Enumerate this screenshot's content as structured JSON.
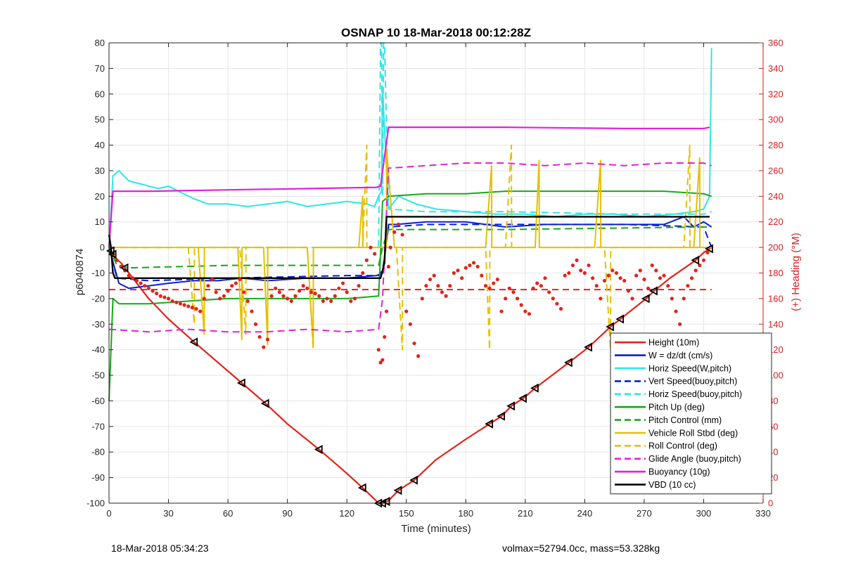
{
  "colors": {
    "height": "#e2231a",
    "w": "#0a1fd6",
    "horiz": "#2ee6e6",
    "pitch": "#18a818",
    "roll": "#e6c000",
    "glide": "#e020e0",
    "buoy": "#e020e0",
    "vbd": "#000000",
    "heading": "#e2231a",
    "grid": "#e6e6e6",
    "axis_left": "#262626",
    "axis_right": "#d21e1e"
  },
  "footer": {
    "left": "18-Mar-2018 05:34:23",
    "right": "volmax=52794.0cc, mass=53.328kg"
  },
  "chart_data": {
    "type": "line",
    "title": "OSNAP 10 18-Mar-2018 00:12:28Z",
    "xlabel": "Time (minutes)",
    "ylabel": "p6040874",
    "y2label": "(+) Heading (°M)",
    "xlim": [
      0,
      330
    ],
    "ylim": [
      -100,
      80
    ],
    "y2lim": [
      0,
      360
    ],
    "xticks": [
      0,
      30,
      60,
      90,
      120,
      150,
      180,
      210,
      240,
      270,
      300,
      330
    ],
    "yticks": [
      -100,
      -90,
      -80,
      -70,
      -60,
      -50,
      -40,
      -30,
      -20,
      -10,
      0,
      10,
      20,
      30,
      40,
      50,
      60,
      70,
      80
    ],
    "y2ticks": [
      0,
      20,
      40,
      60,
      80,
      100,
      120,
      140,
      160,
      180,
      200,
      220,
      240,
      260,
      280,
      300,
      320,
      340,
      360
    ],
    "grid": true,
    "legend_position": "bottom-right",
    "legend": [
      {
        "label": "Height (10m)",
        "color": "height",
        "dash": false
      },
      {
        "label": "W = dz/dt (cm/s)",
        "color": "w",
        "dash": false
      },
      {
        "label": "Horiz Speed(W,pitch)",
        "color": "horiz",
        "dash": false
      },
      {
        "label": "Vert Speed(buoy,pitch)",
        "color": "w",
        "dash": true
      },
      {
        "label": "Horiz Speed(buoy,pitch)",
        "color": "horiz",
        "dash": true
      },
      {
        "label": "Pitch Up (deg)",
        "color": "pitch",
        "dash": false
      },
      {
        "label": "Pitch Control (mm)",
        "color": "pitch",
        "dash": true
      },
      {
        "label": "Vehicle Roll Stbd (deg)",
        "color": "roll",
        "dash": false
      },
      {
        "label": "Roll Control (deg)",
        "color": "roll",
        "dash": true
      },
      {
        "label": "Glide Angle (buoy,pitch)",
        "color": "glide",
        "dash": true
      },
      {
        "label": "Buoyancy (10g)",
        "color": "buoy",
        "dash": false
      },
      {
        "label": "VBD (10 cc)",
        "color": "vbd",
        "dash": false
      }
    ],
    "series": [
      {
        "name": "Height (10m)",
        "color": "height",
        "dash": false,
        "width": 2.2,
        "x": [
          0,
          3,
          6,
          10,
          20,
          30,
          43,
          55,
          67,
          79,
          90,
          106,
          118,
          128,
          132,
          136,
          138,
          141,
          146,
          150,
          154,
          165,
          180,
          192,
          198,
          203,
          209,
          215,
          232,
          242,
          253,
          258,
          271,
          275,
          283,
          296,
          300,
          304
        ],
        "y": [
          0,
          -4,
          -6,
          -10,
          -20,
          -28,
          -37,
          -45,
          -53,
          -61,
          -69,
          -79,
          -87,
          -94,
          -97,
          -100,
          -100,
          -99,
          -95,
          -93,
          -91,
          -83,
          -75,
          -69,
          -66,
          -62,
          -59,
          -55,
          -45,
          -39,
          -31,
          -28,
          -20,
          -17,
          -12,
          -5,
          -2,
          0
        ]
      },
      {
        "name": "W = dz/dt (cm/s)",
        "color": "w",
        "dash": false,
        "width": 2,
        "x": [
          0,
          5,
          10,
          20,
          30,
          43,
          55,
          67,
          80,
          100,
          120,
          135,
          138,
          141,
          145,
          160,
          180,
          200,
          220,
          240,
          260,
          280,
          290,
          295,
          300,
          304
        ],
        "y": [
          0,
          -14,
          -16,
          -15,
          -14,
          -13,
          -13,
          -12,
          -13,
          -12,
          -12,
          -11,
          -10,
          9,
          9,
          10,
          10,
          8,
          9,
          9,
          9,
          9,
          12,
          8,
          10,
          8
        ]
      },
      {
        "name": "Horiz Speed(W,pitch)",
        "color": "horiz",
        "dash": false,
        "width": 2,
        "x": [
          0,
          2,
          5,
          10,
          15,
          20,
          25,
          30,
          35,
          43,
          50,
          60,
          70,
          80,
          90,
          100,
          110,
          120,
          130,
          134,
          136,
          137.5,
          138,
          141,
          146,
          155,
          165,
          180,
          195,
          210,
          225,
          240,
          255,
          270,
          285,
          295,
          300,
          303,
          304
        ],
        "y": [
          0,
          28,
          30,
          26,
          25,
          24,
          23,
          24,
          22,
          19,
          17,
          17,
          16,
          17,
          18,
          16,
          17,
          18,
          17,
          16,
          20,
          22,
          62,
          15,
          20,
          17,
          15,
          14,
          13,
          13,
          12,
          13,
          13,
          12,
          13,
          14,
          15,
          20,
          78
        ]
      },
      {
        "name": "Vert Speed(buoy,pitch)",
        "color": "w",
        "dash": true,
        "width": 2,
        "x": [
          0,
          4,
          20,
          60,
          120,
          136,
          138,
          141,
          160,
          200,
          260,
          300,
          304
        ],
        "y": [
          0,
          -12,
          -13,
          -12,
          -11,
          -11,
          -9,
          8,
          9,
          9,
          9,
          8,
          0
        ]
      },
      {
        "name": "Horiz Speed(buoy,pitch)",
        "color": "horiz",
        "dash": true,
        "width": 2,
        "x": [
          0,
          30,
          60,
          90,
          120,
          136,
          137,
          137.5,
          138,
          138.5,
          139,
          141,
          160,
          200,
          260,
          300,
          304
        ],
        "y": [
          0,
          0,
          0,
          0,
          0,
          0,
          80,
          80,
          20,
          80,
          80,
          15,
          14,
          14,
          13,
          13,
          14
        ]
      },
      {
        "name": "Pitch Up (deg)",
        "color": "pitch",
        "dash": false,
        "width": 2,
        "x": [
          0,
          2,
          5,
          20,
          40,
          60,
          80,
          100,
          120,
          136,
          137,
          138,
          141,
          160,
          180,
          200,
          220,
          240,
          260,
          280,
          300,
          304
        ],
        "y": [
          -60,
          -20,
          -22,
          -22,
          -21,
          -20,
          -20,
          -20,
          -20,
          -19,
          -2,
          18,
          20,
          21,
          21,
          22,
          22,
          22,
          22,
          22,
          21,
          20
        ]
      },
      {
        "name": "Pitch Control (mm)",
        "color": "pitch",
        "dash": true,
        "width": 2,
        "x": [
          0,
          4,
          10,
          60,
          120,
          136,
          138,
          141,
          200,
          300,
          304
        ],
        "y": [
          0,
          -7,
          -8,
          -7,
          -7,
          -7,
          0,
          7,
          7,
          8,
          8
        ]
      },
      {
        "name": "Vehicle Roll Stbd (deg)",
        "color": "roll",
        "dash": false,
        "width": 2,
        "x": [
          0,
          20,
          40,
          45,
          48,
          48.1,
          50,
          65,
          67,
          67.1,
          70,
          78,
          80,
          80.1,
          83,
          100,
          103,
          103.1,
          106,
          126,
          128,
          128.1,
          131,
          136,
          138,
          140,
          140.1,
          144,
          160,
          190,
          193,
          193.1,
          196,
          215,
          217,
          217.1,
          220,
          245,
          248,
          248.1,
          251,
          295,
          298,
          298.1,
          301,
          304
        ],
        "y": [
          0,
          0,
          0,
          0,
          -34,
          0,
          0,
          0,
          -36,
          0,
          0,
          0,
          -38,
          0,
          0,
          0,
          -38,
          0,
          0,
          0,
          20,
          0,
          0,
          0,
          0,
          0,
          38,
          0,
          0,
          0,
          32,
          0,
          0,
          0,
          34,
          0,
          0,
          0,
          34,
          0,
          0,
          0,
          35,
          0,
          0,
          0
        ]
      },
      {
        "name": "Roll Control (deg)",
        "color": "roll",
        "dash": true,
        "width": 2,
        "x": [
          0,
          40,
          43,
          43.1,
          46,
          66,
          69,
          69.1,
          72,
          100,
          103,
          103.1,
          106,
          128,
          130,
          130.1,
          133,
          145,
          148,
          148.1,
          151,
          190,
          192,
          192.1,
          195,
          200,
          203,
          203.1,
          206,
          250,
          253,
          253.1,
          256,
          290,
          293,
          293.1,
          296,
          304
        ],
        "y": [
          0,
          0,
          -30,
          0,
          0,
          0,
          -34,
          0,
          0,
          0,
          -40,
          0,
          0,
          0,
          40,
          0,
          0,
          0,
          -40,
          0,
          0,
          0,
          -40,
          0,
          0,
          0,
          40,
          0,
          0,
          0,
          -40,
          0,
          0,
          0,
          40,
          0,
          0,
          0
        ]
      },
      {
        "name": "Glide Angle (buoy,pitch)",
        "color": "glide",
        "dash": true,
        "width": 2,
        "x": [
          0,
          20,
          40,
          60,
          80,
          100,
          120,
          136,
          138,
          141,
          160,
          180,
          200,
          220,
          240,
          260,
          280,
          300,
          304
        ],
        "y": [
          -32,
          -33,
          -32,
          -33,
          -33,
          -32,
          -33,
          -32,
          -20,
          31,
          32,
          33,
          33,
          32,
          33,
          32,
          33,
          33,
          32
        ]
      },
      {
        "name": "Buoyancy (10g)",
        "color": "buoy",
        "dash": false,
        "width": 2.2,
        "x": [
          0,
          2,
          20,
          60,
          100,
          135,
          137,
          141,
          160,
          200,
          260,
          300,
          303
        ],
        "y": [
          0,
          22,
          22,
          22.5,
          23,
          23.5,
          24,
          47,
          47,
          47,
          46.5,
          46.5,
          47
        ]
      },
      {
        "name": "VBD (10 cc)",
        "color": "vbd",
        "dash": false,
        "width": 2.4,
        "x": [
          0,
          1,
          2,
          3,
          135,
          137,
          139,
          140,
          160,
          200,
          260,
          300,
          303
        ],
        "y": [
          5,
          0,
          -10,
          -12,
          -12,
          -12,
          -6,
          12,
          12,
          12,
          12,
          12,
          12
        ]
      }
    ],
    "heading": {
      "name": "Heading",
      "target": 167,
      "target_xlim": [
        0,
        304
      ],
      "x": [
        2,
        4,
        6,
        8,
        10,
        12,
        14,
        16,
        18,
        20,
        22,
        24,
        26,
        28,
        30,
        32,
        34,
        36,
        38,
        40,
        42,
        44,
        46,
        48,
        50,
        52,
        54,
        56,
        58,
        60,
        62,
        64,
        66,
        68,
        70,
        72,
        74,
        76,
        78,
        80,
        82,
        84,
        86,
        88,
        90,
        92,
        94,
        96,
        98,
        100,
        102,
        104,
        106,
        108,
        110,
        112,
        114,
        116,
        118,
        120,
        122,
        124,
        126,
        128,
        130,
        132,
        134,
        136,
        137,
        138,
        139,
        140,
        141,
        142,
        144,
        146,
        148,
        150,
        152,
        154,
        156,
        158,
        160,
        162,
        164,
        166,
        168,
        170,
        172,
        174,
        176,
        178,
        180,
        182,
        184,
        186,
        188,
        190,
        192,
        194,
        196,
        198,
        200,
        202,
        204,
        206,
        208,
        210,
        212,
        214,
        216,
        218,
        220,
        222,
        224,
        226,
        228,
        230,
        232,
        234,
        236,
        238,
        240,
        242,
        244,
        246,
        248,
        250,
        252,
        254,
        256,
        258,
        260,
        262,
        264,
        266,
        268,
        270,
        272,
        274,
        276,
        278,
        280,
        282,
        284,
        286,
        288,
        290,
        292,
        294,
        296,
        298,
        300,
        302
      ],
      "y": [
        195,
        190,
        185,
        182,
        178,
        176,
        174,
        172,
        170,
        168,
        166,
        164,
        162,
        161,
        160,
        158,
        157,
        156,
        155,
        154,
        153,
        152,
        150,
        160,
        170,
        175,
        165,
        160,
        162,
        166,
        170,
        172,
        175,
        165,
        158,
        150,
        140,
        130,
        122,
        128,
        162,
        168,
        165,
        162,
        160,
        158,
        162,
        166,
        170,
        168,
        165,
        164,
        162,
        158,
        160,
        158,
        162,
        168,
        172,
        165,
        158,
        160,
        170,
        180,
        190,
        200,
        195,
        120,
        110,
        112,
        130,
        150,
        185,
        200,
        212,
        218,
        210,
        150,
        140,
        125,
        115,
        160,
        170,
        175,
        178,
        170,
        165,
        162,
        170,
        180,
        182,
        176,
        184,
        186,
        188,
        185,
        178,
        170,
        168,
        172,
        175,
        150,
        160,
        168,
        165,
        160,
        155,
        150,
        148,
        168,
        172,
        170,
        176,
        165,
        160,
        156,
        152,
        178,
        180,
        186,
        190,
        182,
        180,
        186,
        176,
        170,
        160,
        174,
        178,
        182,
        180,
        176,
        174,
        166,
        160,
        178,
        182,
        175,
        168,
        186,
        182,
        176,
        178,
        170,
        160,
        150,
        140,
        160,
        170,
        176,
        182,
        186,
        190,
        196
      ]
    },
    "markers_x": [
      1,
      2,
      8,
      43,
      67,
      79,
      106,
      128,
      136,
      138,
      140,
      146,
      154,
      192,
      198,
      203,
      209,
      215,
      232,
      242,
      253,
      258,
      271,
      275,
      296,
      303
    ]
  }
}
